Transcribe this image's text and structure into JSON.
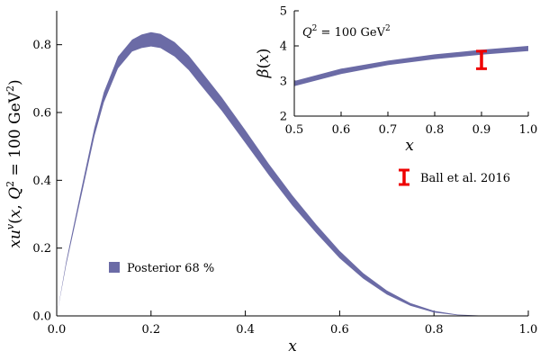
{
  "chart_data": [
    {
      "type": "area",
      "xlabel": "x",
      "ylabel": "xu^v(x, Q^2 = 100 GeV^2)",
      "xlim": [
        0.0,
        1.0
      ],
      "ylim": [
        0.0,
        0.9
      ],
      "x_ticks": [
        "0.0",
        "0.2",
        "0.4",
        "0.6",
        "0.8",
        "1.0"
      ],
      "y_ticks": [
        "0.0",
        "0.2",
        "0.4",
        "0.6",
        "0.8"
      ],
      "grid": false,
      "legend_position": "lower-left",
      "series": [
        {
          "name": "Posterior 68 %",
          "color": "#6b6ba6",
          "x": [
            0.0,
            0.02,
            0.05,
            0.08,
            0.1,
            0.13,
            0.16,
            0.18,
            0.2,
            0.22,
            0.25,
            0.28,
            0.3,
            0.35,
            0.4,
            0.45,
            0.5,
            0.55,
            0.6,
            0.65,
            0.7,
            0.75,
            0.8,
            0.85,
            0.9,
            1.0
          ],
          "lower": [
            0.0,
            0.15,
            0.34,
            0.53,
            0.63,
            0.73,
            0.78,
            0.79,
            0.795,
            0.79,
            0.765,
            0.725,
            0.69,
            0.605,
            0.51,
            0.415,
            0.325,
            0.245,
            0.17,
            0.11,
            0.063,
            0.03,
            0.01,
            0.002,
            0.0,
            0.0
          ],
          "upper": [
            0.0,
            0.16,
            0.36,
            0.555,
            0.66,
            0.765,
            0.815,
            0.83,
            0.837,
            0.832,
            0.808,
            0.768,
            0.733,
            0.645,
            0.548,
            0.448,
            0.355,
            0.27,
            0.192,
            0.126,
            0.075,
            0.038,
            0.015,
            0.004,
            0.001,
            0.0
          ]
        }
      ]
    },
    {
      "type": "area",
      "xlabel": "x",
      "ylabel": "β(x)",
      "annotation": "Q^2 = 100 GeV^2",
      "xlim": [
        0.5,
        1.0
      ],
      "ylim": [
        2,
        5
      ],
      "x_ticks": [
        "0.5",
        "0.6",
        "0.7",
        "0.8",
        "0.9",
        "1.0"
      ],
      "y_ticks": [
        "2",
        "3",
        "4",
        "5"
      ],
      "grid": false,
      "legend_position": "right",
      "series": [
        {
          "name": "Posterior 68 %",
          "color": "#6b6ba6",
          "x": [
            0.5,
            0.6,
            0.7,
            0.8,
            0.9,
            1.0
          ],
          "lower": [
            2.85,
            3.2,
            3.45,
            3.62,
            3.75,
            3.85
          ],
          "upper": [
            3.0,
            3.35,
            3.58,
            3.76,
            3.89,
            4.0
          ]
        }
      ],
      "error_bars": [
        {
          "name": "Ball et al. 2016",
          "color": "#ee0000",
          "x": 0.9,
          "y": 3.6,
          "low": 3.35,
          "high": 3.85
        }
      ]
    }
  ]
}
